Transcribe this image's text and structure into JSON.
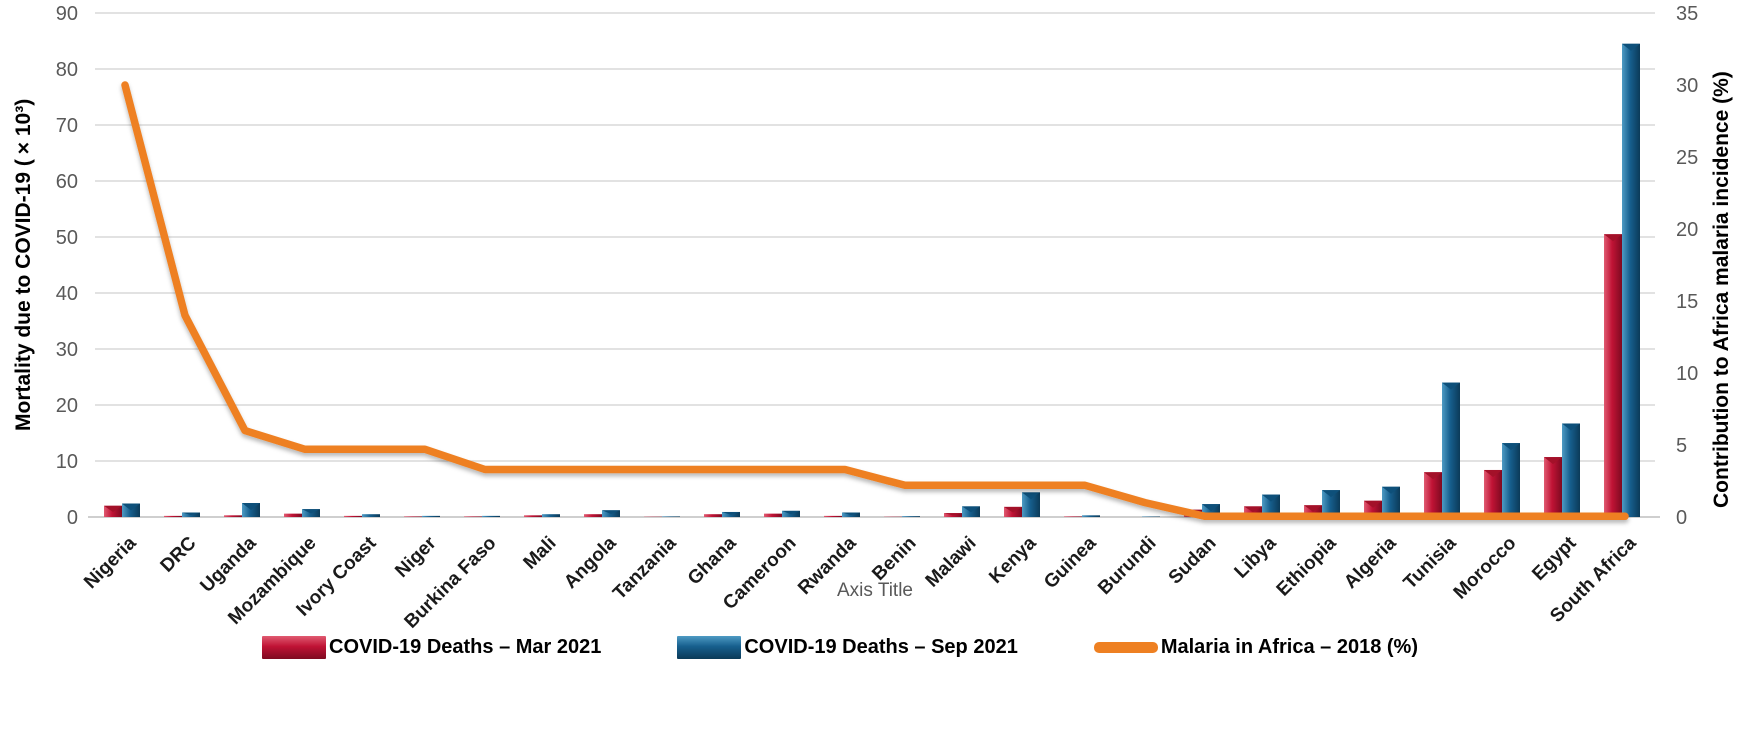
{
  "chart_data": {
    "type": "combo-bar-line",
    "title": "",
    "categories": [
      "Nigeria",
      "DRC",
      "Uganda",
      "Mozambique",
      "Ivory Coast",
      "Niger",
      "Burkina Faso",
      "Mali",
      "Angola",
      "Tanzania",
      "Ghana",
      "Cameroon",
      "Rwanda",
      "Benin",
      "Malawi",
      "Kenya",
      "Guinea",
      "Burundi",
      "Sudan",
      "Libya",
      "Ethiopia",
      "Algeria",
      "Tunisia",
      "Morocco",
      "Egypt",
      "South Africa"
    ],
    "series": [
      {
        "name": "COVID-19 Deaths – Mar 2021",
        "type": "bar",
        "axis": "left",
        "color": "#C01335",
        "color_light": "#E05A71",
        "color_dark": "#7E0A20",
        "cap_color": "#A31129",
        "values": [
          2.0,
          0.2,
          0.3,
          0.6,
          0.2,
          0.1,
          0.1,
          0.3,
          0.5,
          0.05,
          0.5,
          0.6,
          0.2,
          0.05,
          0.7,
          1.8,
          0.1,
          0.02,
          1.3,
          1.9,
          2.1,
          2.9,
          8.0,
          8.4,
          10.7,
          50.5
        ]
      },
      {
        "name": "COVID-19 Deaths – Sep 2021",
        "type": "bar",
        "axis": "left",
        "color": "#175F8E",
        "color_light": "#4E9BC4",
        "color_dark": "#0B3A58",
        "cap_color": "#0E507A",
        "values": [
          2.4,
          0.8,
          2.5,
          1.4,
          0.5,
          0.2,
          0.2,
          0.5,
          1.2,
          0.1,
          0.9,
          1.1,
          0.8,
          0.15,
          1.9,
          4.4,
          0.3,
          0.08,
          2.3,
          4.0,
          4.8,
          5.4,
          24.0,
          13.2,
          16.7,
          84.5
        ]
      },
      {
        "name": "Malaria in Africa – 2018 (%)",
        "type": "line",
        "axis": "right",
        "color": "#EE8022",
        "values": [
          30,
          14,
          6,
          4.7,
          4.7,
          4.7,
          3.3,
          3.3,
          3.3,
          3.3,
          3.3,
          3.3,
          3.3,
          2.2,
          2.2,
          2.2,
          2.2,
          1.0,
          0.05,
          0.05,
          0.05,
          0.05,
          0.05,
          0.05,
          0.05,
          0.05
        ]
      }
    ],
    "left_axis": {
      "title": "Mortality due to COVID-19 (×10³)",
      "min": 0,
      "max": 90,
      "tick_interval": 10,
      "ticks": [
        0,
        10,
        20,
        30,
        40,
        50,
        60,
        70,
        80,
        90
      ]
    },
    "right_axis": {
      "title": "Contribution to Africa malaria incidence (%)",
      "min": 0,
      "max": 35,
      "tick_interval": 5,
      "ticks": [
        0,
        5,
        10,
        15,
        20,
        25,
        30,
        35
      ]
    },
    "x_axis": {
      "title": "Axis Title",
      "label_rotation_deg": -45
    },
    "grid": true,
    "legend_position": "bottom"
  },
  "colors": {
    "background": "#FFFFFF",
    "gridline": "#D9D9D9",
    "baseline": "#BFBFBF",
    "tick_label": "#595959",
    "category_label": "#1A1A1A",
    "axis_title": "#000000",
    "x_axis_title": "#595959"
  }
}
